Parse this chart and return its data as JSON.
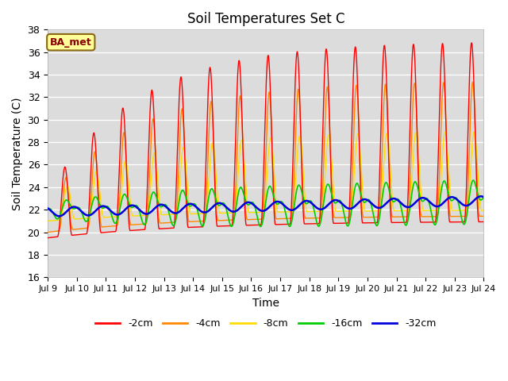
{
  "title": "Soil Temperatures Set C",
  "xlabel": "Time",
  "ylabel": "Soil Temperature (C)",
  "ylim": [
    16,
    38
  ],
  "annotation": "BA_met",
  "bg_color": "#dcdcdc",
  "line_colors": {
    "-2cm": "#ff0000",
    "-4cm": "#ff8800",
    "-8cm": "#ffdd00",
    "-16cm": "#00cc00",
    "-32cm": "#0000dd"
  },
  "legend_labels": [
    "-2cm",
    "-4cm",
    "-8cm",
    "-16cm",
    "-32cm"
  ],
  "xtick_labels": [
    "Jul 9",
    "Jul 10",
    "Jul 11",
    "Jul 12",
    "Jul 13",
    "Jul 14",
    "Jul 15",
    "Jul 16",
    "Jul 17",
    "Jul 18",
    "Jul 19",
    "Jul 20",
    "Jul 21",
    "Jul 22",
    "Jul 23",
    "Jul 24"
  ],
  "xtick_positions": [
    0,
    1,
    2,
    3,
    4,
    5,
    6,
    7,
    8,
    9,
    10,
    11,
    12,
    13,
    14,
    15
  ]
}
